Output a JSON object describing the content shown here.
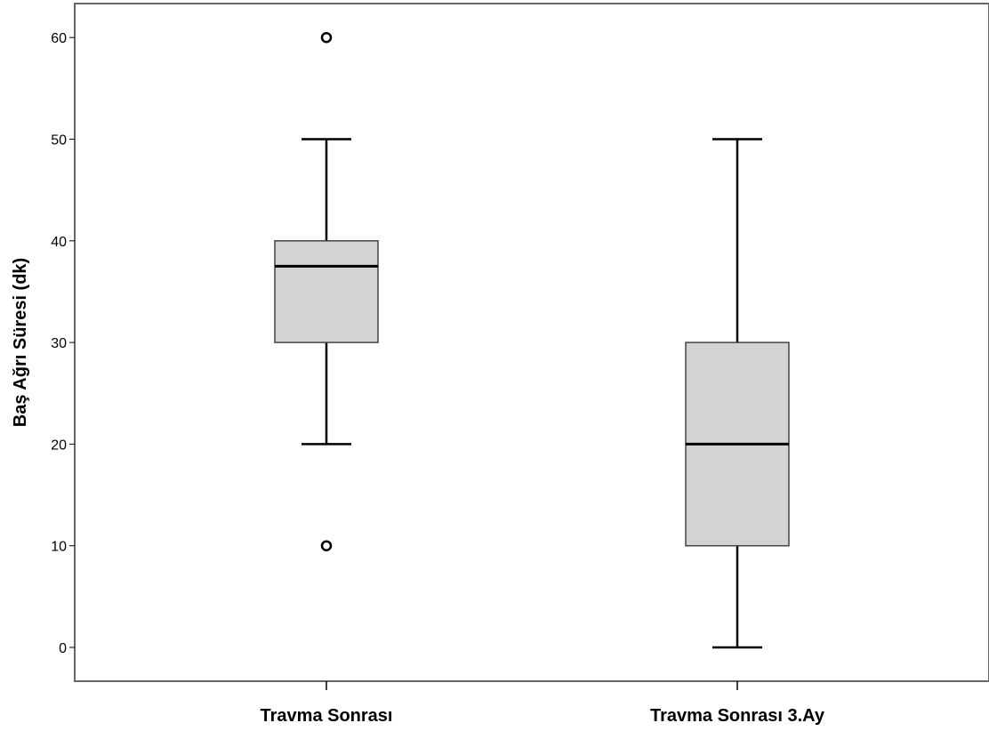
{
  "chart_data": {
    "type": "boxplot",
    "title": "",
    "xlabel": "",
    "ylabel": "Baş Ağrı Süresi (dk)",
    "ylim": [
      -3.5,
      64
    ],
    "yticks": [
      0,
      10,
      20,
      30,
      40,
      50,
      60
    ],
    "grid": false,
    "colors": {
      "box_fill": "#d3d3d3",
      "stroke": "#000000",
      "frame": "#666666"
    },
    "categories": [
      "Travma Sonrası",
      "Travma Sonrası 3.Ay"
    ],
    "boxes": [
      {
        "category": "Travma Sonrası",
        "whisker_low": 20,
        "q1": 30,
        "median": 37.5,
        "q3": 40,
        "whisker_high": 50,
        "outliers": [
          10,
          60
        ]
      },
      {
        "category": "Travma Sonrası 3.Ay",
        "whisker_low": 0,
        "q1": 10,
        "median": 20,
        "q3": 30,
        "whisker_high": 50,
        "outliers": []
      }
    ]
  }
}
